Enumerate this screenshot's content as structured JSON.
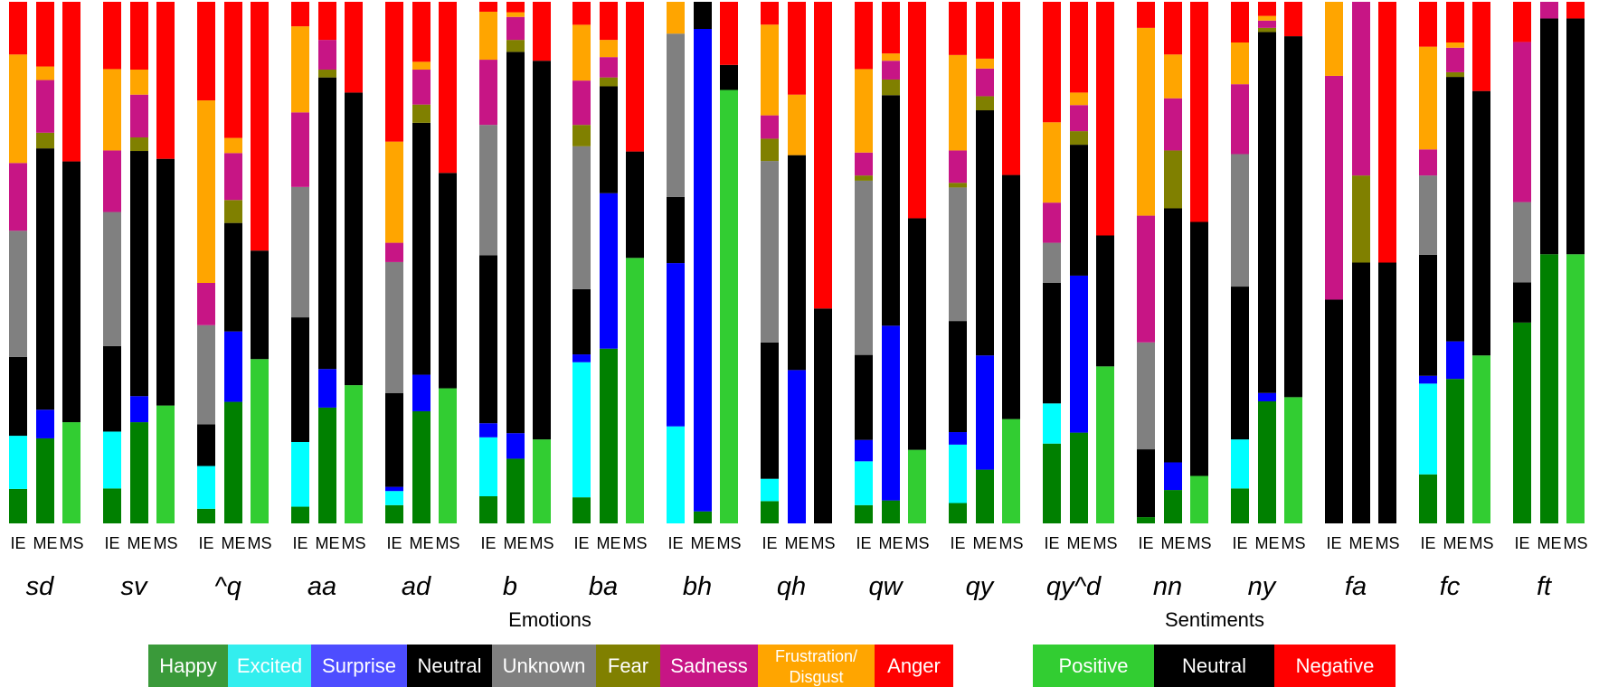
{
  "chart_data": {
    "type": "bar",
    "stacked": true,
    "normalized": true,
    "bar_types": [
      "IE",
      "ME",
      "MS"
    ],
    "groups": [
      "sd",
      "sv",
      "^q",
      "aa",
      "ad",
      "b",
      "ba",
      "bh",
      "qh",
      "qw",
      "qy",
      "qy^d",
      "nn",
      "ny",
      "fa",
      "fc",
      "ft"
    ],
    "emotion_categories": [
      "Happy",
      "Excited",
      "Surprise",
      "Neutral",
      "Unknown",
      "Fear",
      "Sadness",
      "Frustration/ Disgust",
      "Anger"
    ],
    "sentiment_categories": [
      "Positive",
      "Neutral",
      "Negative"
    ],
    "colors": {
      "Happy": "#008000",
      "Excited": "#00ffff",
      "Surprise": "#0000ff",
      "Neutral": "#000000",
      "Unknown": "#808080",
      "Fear": "#808000",
      "Sadness": "#c71585",
      "Frustration/ Disgust": "#ffa500",
      "Anger": "#ff0000",
      "Positive": "#32cd32",
      "Negative": "#ff0000"
    },
    "legend_colors": {
      "Happy": "#3a9a3a",
      "Excited": "#33eeee",
      "Surprise": "#4d4dff",
      "Neutral": "#000000",
      "Unknown": "#808080",
      "Fear": "#808000",
      "Sadness": "#c71585",
      "Frustration/ Disgust": "#ffa500",
      "Anger": "#ff0000",
      "Positive": "#32cd32",
      "Negative": "#ff0000"
    },
    "legend_emotions_title": "Emotions",
    "legend_sentiments_title": "Sentiments",
    "data": {
      "sd": {
        "IE": [
          0.066,
          0.102,
          0,
          0.151,
          0.242,
          0,
          0.13,
          0.208,
          0.101
        ],
        "ME": [
          0.163,
          0,
          0.055,
          0.501,
          0,
          0.03,
          0.101,
          0.026,
          0.124
        ],
        "MS": [
          0.194,
          0.5,
          0.306
        ]
      },
      "sv": {
        "IE": [
          0.067,
          0.109,
          0,
          0.164,
          0.257,
          0,
          0.118,
          0.156,
          0.129
        ],
        "ME": [
          0.194,
          0,
          0.05,
          0.47,
          0,
          0.026,
          0.082,
          0.048,
          0.13
        ],
        "MS": [
          0.226,
          0.473,
          0.301
        ]
      },
      "^q": {
        "IE": [
          0.028,
          0.082,
          0,
          0.08,
          0.19,
          0,
          0.081,
          0.35,
          0.189
        ],
        "ME": [
          0.233,
          0,
          0.135,
          0.208,
          0,
          0.044,
          0.09,
          0.029,
          0.261
        ],
        "MS": [
          0.315,
          0.208,
          0.477
        ]
      },
      "aa": {
        "IE": [
          0.032,
          0.124,
          0,
          0.239,
          0.25,
          0,
          0.143,
          0.165,
          0.047
        ],
        "ME": [
          0.222,
          0,
          0.074,
          0.559,
          0,
          0.015,
          0.057,
          0,
          0.073
        ],
        "MS": [
          0.265,
          0.561,
          0.174
        ]
      },
      "ad": {
        "IE": [
          0.035,
          0.027,
          0.008,
          0.18,
          0.251,
          0,
          0.037,
          0.194,
          0.268
        ],
        "ME": [
          0.215,
          0,
          0.07,
          0.483,
          0,
          0.035,
          0.067,
          0.015,
          0.115
        ],
        "MS": [
          0.259,
          0.413,
          0.328
        ]
      },
      "b": {
        "IE": [
          0.052,
          0.113,
          0.027,
          0.322,
          0.25,
          0,
          0.125,
          0.092,
          0.019
        ],
        "ME": [
          0.124,
          0,
          0.049,
          0.731,
          0,
          0.023,
          0.044,
          0.009,
          0.02
        ],
        "MS": [
          0.161,
          0.726,
          0.113
        ]
      },
      "ba": {
        "IE": [
          0.05,
          0.259,
          0.015,
          0.125,
          0.274,
          0.041,
          0.085,
          0.107,
          0.044
        ],
        "ME": [
          0.335,
          0,
          0.298,
          0.205,
          0,
          0.017,
          0.039,
          0.033,
          0.073
        ],
        "MS": [
          0.509,
          0.204,
          0.287
        ]
      },
      "bh": {
        "IE": [
          0,
          0.186,
          0.313,
          0.127,
          0.313,
          0,
          0,
          0.061,
          0
        ],
        "ME": [
          0.023,
          0,
          0.925,
          0.052,
          0,
          0,
          0,
          0,
          0
        ],
        "MS": [
          0.831,
          0.048,
          0.121
        ]
      },
      "qh": {
        "IE": [
          0.043,
          0.043,
          0,
          0.263,
          0.35,
          0.043,
          0.045,
          0.175,
          0.044
        ],
        "ME": [
          0,
          0,
          0.294,
          0.412,
          0,
          0,
          0,
          0.116,
          0.178
        ],
        "MS": [
          0,
          0.412,
          0.588
        ]
      },
      "qw": {
        "IE": [
          0.035,
          0.084,
          0.041,
          0.163,
          0.334,
          0.01,
          0.044,
          0.16,
          0.129
        ],
        "ME": [
          0.044,
          0,
          0.335,
          0.442,
          0,
          0.03,
          0.036,
          0.014,
          0.099
        ],
        "MS": [
          0.141,
          0.444,
          0.415
        ]
      },
      "qy": {
        "IE": [
          0.039,
          0.112,
          0.024,
          0.213,
          0.256,
          0.009,
          0.062,
          0.183,
          0.102
        ],
        "ME": [
          0.103,
          0,
          0.219,
          0.47,
          0,
          0.027,
          0.053,
          0.019,
          0.109
        ],
        "MS": [
          0.2,
          0.468,
          0.332
        ]
      },
      "qy^d": {
        "IE": [
          0.153,
          0.077,
          0,
          0.231,
          0.077,
          0,
          0.077,
          0.154,
          0.231
        ],
        "ME": [
          0.174,
          0,
          0.301,
          0.251,
          0,
          0.026,
          0.05,
          0.024,
          0.174
        ],
        "MS": [
          0.301,
          0.251,
          0.448
        ]
      },
      "nn": {
        "IE": [
          0.012,
          0,
          0,
          0.13,
          0.205,
          0,
          0.243,
          0.36,
          0.05
        ],
        "ME": [
          0.064,
          0,
          0.053,
          0.487,
          0,
          0.111,
          0.1,
          0.084,
          0.101
        ],
        "MS": [
          0.091,
          0.487,
          0.422
        ]
      },
      "ny": {
        "IE": [
          0.067,
          0.094,
          0,
          0.293,
          0.254,
          0,
          0.134,
          0.08,
          0.078
        ],
        "ME": [
          0.234,
          0,
          0.016,
          0.692,
          0,
          0.008,
          0.014,
          0.009,
          0.027
        ],
        "MS": [
          0.242,
          0.692,
          0.066
        ]
      },
      "fa": {
        "IE": [
          0,
          0,
          0,
          0.429,
          0,
          0,
          0.429,
          0.142,
          0
        ],
        "ME": [
          0,
          0,
          0,
          0.5,
          0,
          0.167,
          0.333,
          0,
          0
        ],
        "MS": [
          0,
          0.5,
          0.5
        ]
      },
      "fc": {
        "IE": [
          0.094,
          0.174,
          0.015,
          0.232,
          0.152,
          0,
          0.05,
          0.197,
          0.086
        ],
        "ME": [
          0.277,
          0,
          0.072,
          0.507,
          0,
          0.009,
          0.047,
          0.01,
          0.078
        ],
        "MS": [
          0.322,
          0.507,
          0.171
        ]
      },
      "ft": {
        "IE": [
          0.385,
          0,
          0,
          0.077,
          0.154,
          0,
          0.307,
          0,
          0.077
        ],
        "ME": [
          0.516,
          0,
          0,
          0.452,
          0,
          0,
          0.032,
          0,
          0
        ],
        "MS": [
          0.516,
          0.452,
          0.032
        ]
      }
    }
  }
}
